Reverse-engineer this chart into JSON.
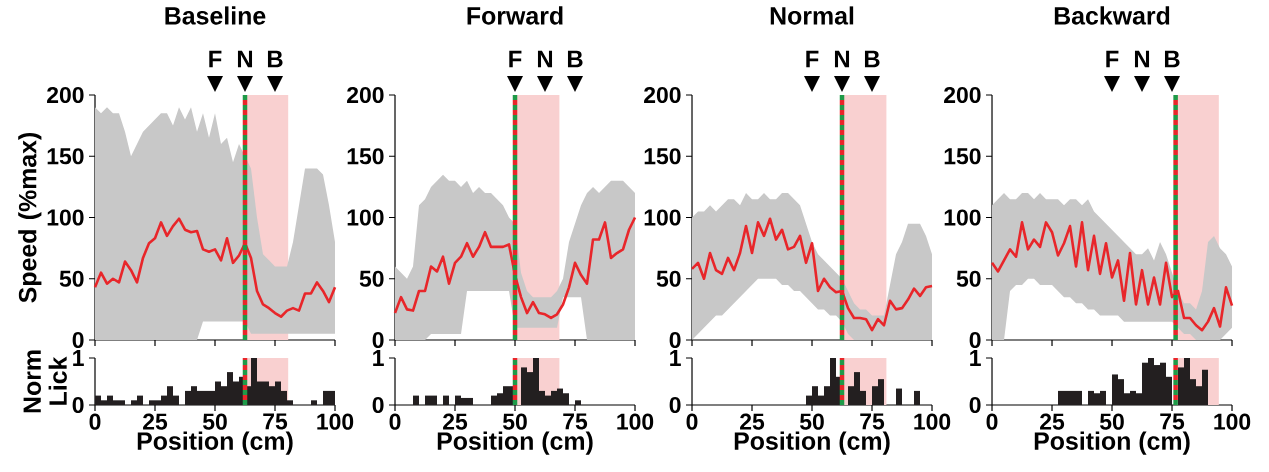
{
  "chart_data": [
    {
      "type": "line",
      "title": "Baseline",
      "ylabel": "Speed (%max)",
      "xlim": [
        0,
        100
      ],
      "ylim": [
        0,
        200
      ],
      "xticks": [
        0,
        25,
        50,
        75,
        100
      ],
      "yticks": [
        0,
        50,
        100,
        150,
        200
      ],
      "tick_labels": "y",
      "x": [
        0,
        2.5,
        5,
        7.5,
        10,
        12.5,
        15,
        17.5,
        20,
        22.5,
        25,
        27.5,
        30,
        32.5,
        35,
        37.5,
        40,
        42.5,
        45,
        47.5,
        50,
        52.5,
        55,
        57.5,
        60,
        62.5,
        65,
        67.5,
        70,
        72.5,
        75,
        77.5,
        80,
        82.5,
        85,
        87.5,
        90,
        92.5,
        95,
        97.5,
        100
      ],
      "series": [
        {
          "color": "#e8262a",
          "values": [
            43,
            55,
            46,
            50,
            47,
            64,
            57,
            47,
            67,
            79,
            83,
            96,
            85,
            93,
            99,
            90,
            88,
            89,
            74,
            72,
            74,
            65,
            83,
            63,
            69,
            79,
            67,
            40,
            29,
            26,
            22,
            19,
            24,
            26,
            24,
            38,
            38,
            47,
            40,
            31,
            43
          ],
          "lower": [
            0,
            0,
            0,
            0,
            0,
            0,
            0,
            0,
            0,
            0,
            0,
            0,
            0,
            0,
            0,
            0,
            0,
            0,
            15,
            15,
            15,
            15,
            15,
            15,
            15,
            15,
            5,
            5,
            5,
            5,
            5,
            5,
            5,
            5,
            5,
            5,
            5,
            5,
            5,
            5,
            5
          ],
          "upper": [
            190,
            185,
            190,
            185,
            185,
            170,
            150,
            160,
            170,
            175,
            180,
            185,
            185,
            175,
            190,
            180,
            190,
            170,
            185,
            165,
            185,
            160,
            165,
            145,
            160,
            150,
            140,
            100,
            70,
            65,
            60,
            60,
            60,
            80,
            110,
            140,
            140,
            140,
            135,
            110,
            80
          ]
        }
      ],
      "ref_lines": [
        {
          "axis": "x",
          "value": 62.5,
          "color": "#1f9a48",
          "line_style": "dashed"
        },
        {
          "axis": "x",
          "value": 62.5,
          "color": "#e8262a",
          "line_style": "dashed"
        }
      ],
      "bands": [
        {
          "axis": "x",
          "from": 62.5,
          "to": 80.5,
          "color": "#f9d0d0"
        }
      ],
      "annotations": [
        "F",
        "N",
        "B"
      ]
    },
    {
      "type": "histogram",
      "ylabel": "Norm Lick",
      "xlabel": "Position (cm)",
      "xlim": [
        0,
        100
      ],
      "ylim": [
        0,
        1
      ],
      "xticks": [
        0,
        25,
        50,
        75,
        100
      ],
      "yticks": [
        0,
        1
      ],
      "color": "#231f20",
      "bins": [
        0,
        2.5,
        5,
        7.5,
        10,
        12.5,
        15,
        17.5,
        20,
        22.5,
        25,
        27.5,
        30,
        32.5,
        35,
        37.5,
        40,
        42.5,
        45,
        47.5,
        50,
        52.5,
        55,
        57.5,
        60,
        62.5,
        65,
        67.5,
        70,
        72.5,
        75,
        77.5,
        80,
        82.5,
        85,
        87.5,
        90,
        92.5,
        95,
        97.5,
        100
      ],
      "values": [
        0.2,
        0.1,
        0.2,
        0.1,
        0.1,
        0,
        0.1,
        0.2,
        0,
        0.1,
        0.1,
        0.2,
        0.4,
        0.2,
        0,
        0.3,
        0.4,
        0.3,
        0.3,
        0.3,
        0.5,
        0.4,
        0.7,
        0.5,
        0.6,
        0.4,
        1,
        0.5,
        0.5,
        0.4,
        0.5,
        0.3,
        0.1,
        0,
        0,
        0,
        0.1,
        0,
        0.3,
        0.3
      ],
      "ref_lines": [
        {
          "axis": "x",
          "value": 62.5,
          "color": "#1f9a48",
          "line_style": "dashed"
        },
        {
          "axis": "x",
          "value": 62.5,
          "color": "#e8262a",
          "line_style": "dashed"
        }
      ],
      "bands": [
        {
          "axis": "x",
          "from": 62.5,
          "to": 80.5,
          "color": "#f9d0d0"
        }
      ]
    },
    {
      "type": "line",
      "title": "Forward",
      "xlim": [
        0,
        100
      ],
      "ylim": [
        0,
        200
      ],
      "xticks": [
        0,
        25,
        50,
        75,
        100
      ],
      "yticks": [
        0,
        50,
        100,
        150,
        200
      ],
      "tick_labels": "y",
      "x": [
        0,
        2.5,
        5,
        7.5,
        10,
        12.5,
        15,
        17.5,
        20,
        22.5,
        25,
        27.5,
        30,
        32.5,
        35,
        37.5,
        40,
        42.5,
        45,
        47.5,
        50,
        52.5,
        55,
        57.5,
        60,
        62.5,
        65,
        67.5,
        70,
        72.5,
        75,
        77.5,
        80,
        82.5,
        85,
        87.5,
        90,
        92.5,
        95,
        97.5,
        100
      ],
      "series": [
        {
          "color": "#e8262a",
          "values": [
            22,
            35,
            25,
            24,
            40,
            40,
            60,
            56,
            68,
            46,
            63,
            68,
            79,
            68,
            76,
            88,
            76,
            76,
            76,
            78,
            53,
            35,
            22,
            31,
            22,
            21,
            18,
            21,
            29,
            43,
            63,
            53,
            46,
            82,
            82,
            96,
            67,
            71,
            74,
            90,
            100
          ],
          "lower": [
            0,
            0,
            0,
            0,
            0,
            0,
            5,
            5,
            5,
            5,
            5,
            5,
            40,
            40,
            40,
            40,
            40,
            40,
            40,
            40,
            10,
            10,
            10,
            10,
            10,
            10,
            10,
            10,
            35,
            35,
            35,
            35,
            0,
            0,
            0,
            0,
            0,
            0,
            0,
            0,
            0
          ],
          "upper": [
            60,
            55,
            50,
            60,
            110,
            115,
            125,
            130,
            135,
            130,
            130,
            125,
            130,
            120,
            125,
            120,
            120,
            115,
            110,
            100,
            95,
            55,
            40,
            35,
            35,
            35,
            35,
            40,
            50,
            80,
            95,
            110,
            120,
            125,
            120,
            125,
            130,
            130,
            130,
            125,
            120
          ]
        }
      ],
      "ref_lines": [
        {
          "axis": "x",
          "value": 50,
          "color": "#1f9a48",
          "line_style": "dashed"
        },
        {
          "axis": "x",
          "value": 50,
          "color": "#e8262a",
          "line_style": "dashed"
        }
      ],
      "bands": [
        {
          "axis": "x",
          "from": 50,
          "to": 68.5,
          "color": "#f9d0d0"
        }
      ],
      "annotations": [
        "F",
        "N",
        "B"
      ]
    },
    {
      "type": "histogram",
      "xlabel": "Position (cm)",
      "xlim": [
        0,
        100
      ],
      "ylim": [
        0,
        1
      ],
      "xticks": [
        0,
        25,
        50,
        75,
        100
      ],
      "yticks": [
        0,
        1
      ],
      "color": "#231f20",
      "bins": [
        0,
        2.5,
        5,
        7.5,
        10,
        12.5,
        15,
        17.5,
        20,
        22.5,
        25,
        27.5,
        30,
        32.5,
        35,
        37.5,
        40,
        42.5,
        45,
        47.5,
        50,
        52.5,
        55,
        57.5,
        60,
        62.5,
        65,
        67.5,
        70,
        72.5,
        75,
        77.5,
        80,
        82.5,
        85,
        87.5,
        90,
        92.5,
        95,
        97.5,
        100
      ],
      "values": [
        0,
        0,
        0,
        0.2,
        0,
        0.2,
        0.2,
        0,
        0.2,
        0,
        0.2,
        0.15,
        0.15,
        0,
        0,
        0,
        0.2,
        0.25,
        0.4,
        0.4,
        0,
        0.8,
        0.7,
        1,
        0.3,
        0.2,
        0.3,
        0.35,
        0.25,
        0,
        0.1,
        0,
        0,
        0,
        0,
        0,
        0,
        0,
        0,
        0
      ],
      "ref_lines": [
        {
          "axis": "x",
          "value": 50,
          "color": "#1f9a48",
          "line_style": "dashed"
        },
        {
          "axis": "x",
          "value": 50,
          "color": "#e8262a",
          "line_style": "dashed"
        }
      ],
      "bands": [
        {
          "axis": "x",
          "from": 50,
          "to": 68.5,
          "color": "#f9d0d0"
        }
      ]
    },
    {
      "type": "line",
      "title": "Normal",
      "xlim": [
        0,
        100
      ],
      "ylim": [
        0,
        200
      ],
      "xticks": [
        0,
        25,
        50,
        75,
        100
      ],
      "yticks": [
        0,
        50,
        100,
        150,
        200
      ],
      "tick_labels": "y",
      "x": [
        0,
        2.5,
        5,
        7.5,
        10,
        12.5,
        15,
        17.5,
        20,
        22.5,
        25,
        27.5,
        30,
        32.5,
        35,
        37.5,
        40,
        42.5,
        45,
        47.5,
        50,
        52.5,
        55,
        57.5,
        60,
        62.5,
        65,
        67.5,
        70,
        72.5,
        75,
        77.5,
        80,
        82.5,
        85,
        87.5,
        90,
        92.5,
        95,
        97.5,
        100
      ],
      "series": [
        {
          "color": "#e8262a",
          "values": [
            58,
            63,
            50,
            71,
            57,
            54,
            67,
            57,
            71,
            93,
            71,
            96,
            85,
            99,
            82,
            90,
            74,
            76,
            85,
            63,
            79,
            40,
            50,
            43,
            39,
            40,
            26,
            18,
            18,
            17,
            8,
            17,
            12,
            32,
            25,
            26,
            33,
            42,
            36,
            43,
            44
          ],
          "lower": [
            0,
            5,
            10,
            15,
            20,
            20,
            25,
            30,
            35,
            40,
            45,
            50,
            50,
            50,
            50,
            45,
            45,
            40,
            40,
            35,
            30,
            25,
            25,
            20,
            20,
            15,
            5,
            0,
            0,
            0,
            0,
            0,
            0,
            0,
            0,
            0,
            0,
            0,
            0,
            0,
            0
          ],
          "upper": [
            100,
            105,
            105,
            110,
            105,
            110,
            115,
            115,
            110,
            120,
            115,
            115,
            120,
            115,
            115,
            120,
            120,
            115,
            110,
            95,
            80,
            70,
            65,
            60,
            55,
            50,
            40,
            30,
            25,
            25,
            20,
            20,
            20,
            45,
            70,
            80,
            95,
            95,
            95,
            85,
            70
          ]
        }
      ],
      "ref_lines": [
        {
          "axis": "x",
          "value": 62.5,
          "color": "#1f9a48",
          "line_style": "dashed"
        },
        {
          "axis": "x",
          "value": 62.5,
          "color": "#e8262a",
          "line_style": "dashed"
        }
      ],
      "bands": [
        {
          "axis": "x",
          "from": 62.5,
          "to": 81,
          "color": "#f9d0d0"
        }
      ],
      "annotations": [
        "F",
        "N",
        "B"
      ]
    },
    {
      "type": "histogram",
      "xlabel": "Position (cm)",
      "xlim": [
        0,
        100
      ],
      "ylim": [
        0,
        1
      ],
      "xticks": [
        0,
        25,
        50,
        75,
        100
      ],
      "yticks": [
        0,
        1
      ],
      "color": "#231f20",
      "bins": [
        0,
        2.5,
        5,
        7.5,
        10,
        12.5,
        15,
        17.5,
        20,
        22.5,
        25,
        27.5,
        30,
        32.5,
        35,
        37.5,
        40,
        42.5,
        45,
        47.5,
        50,
        52.5,
        55,
        57.5,
        60,
        62.5,
        65,
        67.5,
        70,
        72.5,
        75,
        77.5,
        80,
        82.5,
        85,
        87.5,
        90,
        92.5,
        95,
        97.5,
        100
      ],
      "values": [
        0,
        0,
        0,
        0,
        0,
        0,
        0,
        0,
        0,
        0,
        0,
        0,
        0,
        0,
        0,
        0,
        0,
        0,
        0,
        0.2,
        0.4,
        0.2,
        0.4,
        1,
        0.6,
        0,
        0.4,
        0.7,
        0.3,
        0,
        0.4,
        0.55,
        0,
        0,
        0.35,
        0,
        0,
        0.3,
        0,
        0
      ],
      "ref_lines": [
        {
          "axis": "x",
          "value": 62.5,
          "color": "#1f9a48",
          "line_style": "dashed"
        },
        {
          "axis": "x",
          "value": 62.5,
          "color": "#e8262a",
          "line_style": "dashed"
        }
      ],
      "bands": [
        {
          "axis": "x",
          "from": 62.5,
          "to": 81,
          "color": "#f9d0d0"
        }
      ]
    },
    {
      "type": "line",
      "title": "Backward",
      "xlim": [
        0,
        100
      ],
      "ylim": [
        0,
        200
      ],
      "xticks": [
        0,
        25,
        50,
        75,
        100
      ],
      "yticks": [
        0,
        50,
        100,
        150,
        200
      ],
      "tick_labels": "y",
      "x": [
        0,
        2.5,
        5,
        7.5,
        10,
        12.5,
        15,
        17.5,
        20,
        22.5,
        25,
        27.5,
        30,
        32.5,
        35,
        37.5,
        40,
        42.5,
        45,
        47.5,
        50,
        52.5,
        55,
        57.5,
        60,
        62.5,
        65,
        67.5,
        70,
        72.5,
        75,
        77.5,
        80,
        82.5,
        85,
        87.5,
        90,
        92.5,
        95,
        97.5,
        100
      ],
      "series": [
        {
          "color": "#e8262a",
          "values": [
            63,
            56,
            65,
            74,
            68,
            96,
            74,
            82,
            76,
            96,
            88,
            69,
            79,
            93,
            60,
            96,
            57,
            85,
            54,
            79,
            51,
            65,
            32,
            71,
            29,
            57,
            29,
            51,
            29,
            63,
            35,
            40,
            18,
            18,
            12,
            8,
            15,
            26,
            11,
            43,
            28
          ],
          "lower": [
            0,
            0,
            0,
            40,
            45,
            45,
            50,
            50,
            45,
            45,
            45,
            40,
            35,
            35,
            30,
            30,
            25,
            25,
            20,
            20,
            20,
            20,
            15,
            15,
            15,
            15,
            15,
            15,
            15,
            15,
            15,
            10,
            5,
            5,
            0,
            0,
            0,
            0,
            0,
            5,
            10
          ],
          "upper": [
            110,
            115,
            120,
            115,
            115,
            120,
            120,
            115,
            120,
            115,
            115,
            115,
            110,
            115,
            115,
            110,
            115,
            105,
            100,
            95,
            90,
            85,
            80,
            75,
            70,
            70,
            75,
            65,
            80,
            70,
            55,
            40,
            30,
            30,
            25,
            40,
            80,
            85,
            75,
            70,
            60
          ]
        }
      ],
      "ref_lines": [
        {
          "axis": "x",
          "value": 76.5,
          "color": "#1f9a48",
          "line_style": "dashed"
        },
        {
          "axis": "x",
          "value": 76.5,
          "color": "#e8262a",
          "line_style": "dashed"
        }
      ],
      "bands": [
        {
          "axis": "x",
          "from": 76.5,
          "to": 94.5,
          "color": "#f9d0d0"
        }
      ],
      "annotations": [
        "F",
        "N",
        "B"
      ]
    },
    {
      "type": "histogram",
      "xlabel": "Position (cm)",
      "xlim": [
        0,
        100
      ],
      "ylim": [
        0,
        1
      ],
      "xticks": [
        0,
        25,
        50,
        75,
        100
      ],
      "yticks": [
        0,
        1
      ],
      "color": "#231f20",
      "bins": [
        0,
        2.5,
        5,
        7.5,
        10,
        12.5,
        15,
        17.5,
        20,
        22.5,
        25,
        27.5,
        30,
        32.5,
        35,
        37.5,
        40,
        42.5,
        45,
        47.5,
        50,
        52.5,
        55,
        57.5,
        60,
        62.5,
        65,
        67.5,
        70,
        72.5,
        75,
        77.5,
        80,
        82.5,
        85,
        87.5,
        90,
        92.5,
        95,
        97.5,
        100
      ],
      "values": [
        0,
        0,
        0,
        0,
        0,
        0,
        0,
        0,
        0,
        0,
        0,
        0.3,
        0.3,
        0.3,
        0.3,
        0,
        0.3,
        0.25,
        0.3,
        0,
        0.65,
        0.55,
        0.25,
        0.3,
        0.25,
        0.9,
        1,
        0.85,
        0.9,
        0.6,
        0,
        0.8,
        1,
        0.55,
        0.4,
        0.75,
        0,
        0,
        0,
        0
      ],
      "ref_lines": [
        {
          "axis": "x",
          "value": 76.5,
          "color": "#1f9a48",
          "line_style": "dashed"
        },
        {
          "axis": "x",
          "value": 76.5,
          "color": "#e8262a",
          "line_style": "dashed"
        }
      ],
      "bands": [
        {
          "axis": "x",
          "from": 76.5,
          "to": 94.5,
          "color": "#f9d0d0"
        }
      ]
    }
  ]
}
